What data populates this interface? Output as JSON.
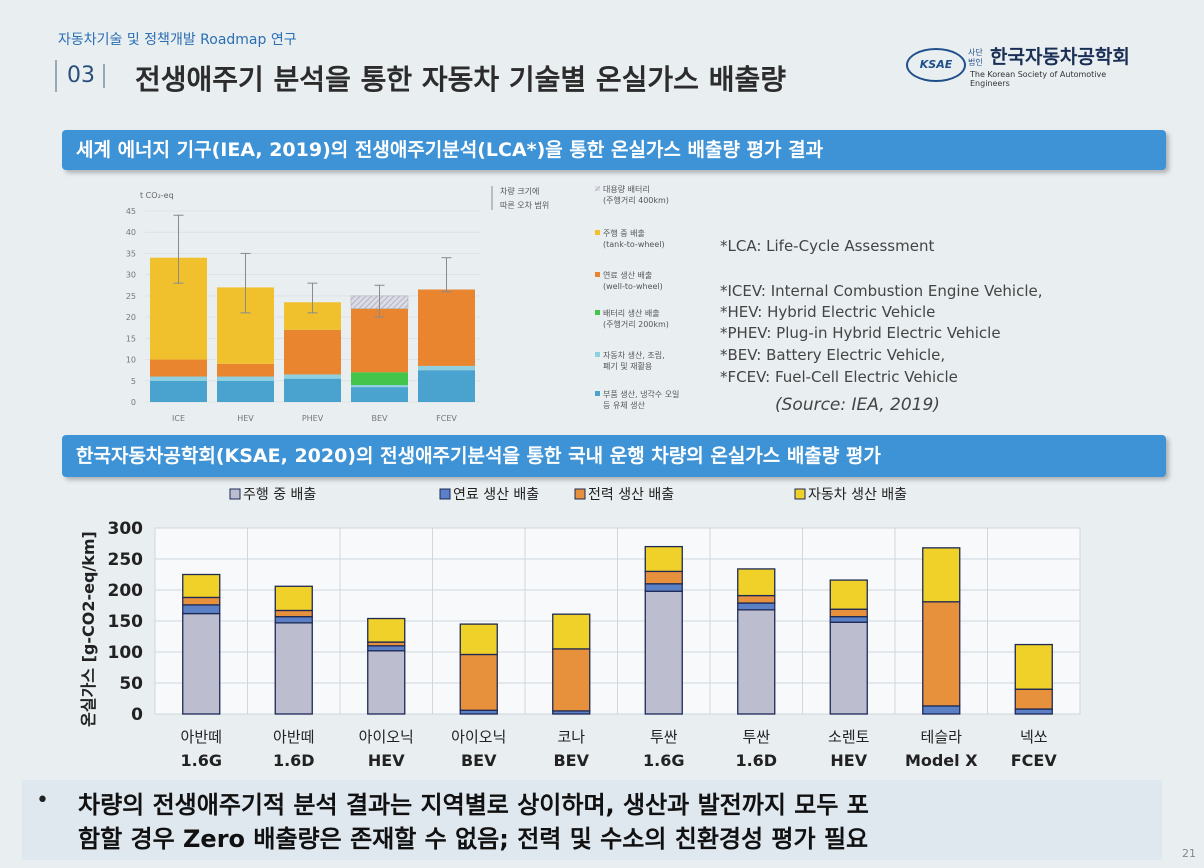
{
  "header": {
    "topnote": "자동차기술 및 정책개발 Roadmap 연구",
    "section_no": "03",
    "title": "전생애주기 분석을 통한 자동차 기술별 온실가스 배출량",
    "logo_mark": "KSAE",
    "logo_small": "사단법인",
    "logo_name": "한국자동차공학회",
    "logo_eng": "The Korean Society of Automotive Engineers"
  },
  "banner1": "세계 에너지 기구(IEA, 2019)의  전생애주기분석(LCA*)을 통한 온실가스 배출량 평가 결과",
  "banner2": "한국자동차공학회(KSAE, 2020)의  전생애주기분석을 통한 국내 운행 차량의 온실가스 배출량 평가",
  "notes": [
    "*LCA: Life-Cycle Assessment",
    "*ICEV: Internal Combustion Engine Vehicle,",
    "*HEV: Hybrid Electric Vehicle",
    "*PHEV: Plug-in Hybrid Electric Vehicle",
    "*BEV: Battery Electric Vehicle,",
    "*FCEV: Fuel-Cell Electric Vehicle"
  ],
  "source": "(Source: IEA, 2019)",
  "footer": {
    "bullet": "•",
    "line1": "차량의 전생애주기적 분석 결과는 지역별로 상이하며, 생산과 발전까지 모두 포",
    "line2": "함할 경우 Zero 배출량은 존재할 수 없음; 전력 및 수소의 친환경성 평가 필요"
  },
  "page_number": "21",
  "chart_data": [
    {
      "type": "bar",
      "stacked": true,
      "ylabel": "t CO₂-eq",
      "ylim": [
        0,
        45
      ],
      "yticks": [
        0,
        5,
        10,
        15,
        20,
        25,
        30,
        35,
        40,
        45
      ],
      "categories": [
        "ICE",
        "HEV",
        "PHEV",
        "BEV",
        "FCEV"
      ],
      "series": [
        {
          "name": "부품 생산, 냉각수 오일 등 유체 생산",
          "color": "#4aa3cf",
          "values": [
            5,
            5,
            5.5,
            3.5,
            7.5
          ]
        },
        {
          "name": "자동차 생산, 조립, 폐기 및 재활용",
          "color": "#8fd0e0",
          "values": [
            1,
            1,
            1,
            0.5,
            1
          ]
        },
        {
          "name": "배터리 생산 배출 (주행거리 200km)",
          "color": "#44c44a",
          "values": [
            0,
            0,
            0,
            3,
            0
          ]
        },
        {
          "name": "연료 생산 배출 (well-to-wheel)",
          "color": "#e9842f",
          "values": [
            4,
            3,
            10.5,
            15,
            18
          ]
        },
        {
          "name": "주행 중 배출 (tank-to-wheel)",
          "color": "#f0c12d",
          "values": [
            24,
            18,
            6.5,
            0,
            0
          ]
        },
        {
          "name": "대용량 배터리 (주행거리 400km)",
          "color": "#c7c7d3",
          "values": [
            0,
            0,
            0,
            3,
            0
          ]
        }
      ],
      "error_bars": [
        {
          "low": 28,
          "high": 44
        },
        {
          "low": 21,
          "high": 35
        },
        {
          "low": 21,
          "high": 28
        },
        {
          "low": 20,
          "high": 27.5
        },
        {
          "low": 26,
          "high": 34
        }
      ],
      "error_legend": "차량 크기에 따른 오차 범위"
    },
    {
      "type": "bar",
      "stacked": true,
      "ylabel": "온실가스 [g-CO2-eq/km]",
      "ylim": [
        0,
        300
      ],
      "yticks": [
        0,
        50,
        100,
        150,
        200,
        250,
        300
      ],
      "categories": [
        [
          "아반떼",
          "1.6G"
        ],
        [
          "아반떼",
          "1.6D"
        ],
        [
          "아이오닉",
          "HEV"
        ],
        [
          "아이오닉",
          "BEV"
        ],
        [
          "코나",
          "BEV"
        ],
        [
          "투싼",
          "1.6G"
        ],
        [
          "투싼",
          "1.6D"
        ],
        [
          "소렌토",
          "HEV"
        ],
        [
          "테슬라",
          "Model X"
        ],
        [
          "넥쏘",
          "FCEV"
        ]
      ],
      "legend": "top",
      "grid": true,
      "series": [
        {
          "name": "주행 중 배출",
          "color": "#bdbdd0",
          "values": [
            162,
            147,
            102,
            0,
            0,
            198,
            168,
            148,
            0,
            0
          ]
        },
        {
          "name": "연료 생산 배출",
          "color": "#5b80c6",
          "values": [
            14,
            10,
            8,
            6,
            5,
            12,
            11,
            9,
            13,
            8
          ]
        },
        {
          "name": "전력 생산 배출",
          "color": "#e8913d",
          "values": [
            12,
            10,
            6,
            90,
            100,
            20,
            12,
            12,
            168,
            32
          ]
        },
        {
          "name": "자동차 생산 배출",
          "color": "#f0d12a",
          "values": [
            37,
            39,
            38,
            49,
            56,
            40,
            43,
            47,
            87,
            72
          ]
        }
      ]
    }
  ]
}
